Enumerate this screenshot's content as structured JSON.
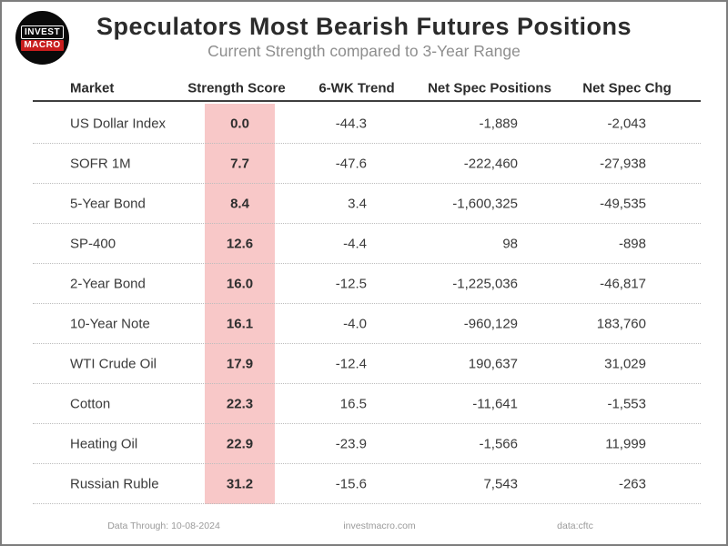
{
  "header": {
    "title": "Speculators Most Bearish Futures Positions",
    "subtitle": "Current Strength compared to 3-Year Range"
  },
  "logo": {
    "line1": "INVEST",
    "line2": "MACRO"
  },
  "table": {
    "columns": [
      "Market",
      "Strength Score",
      "6-WK Trend",
      "Net Spec Positions",
      "Net Spec Chg"
    ],
    "rows": [
      {
        "market": "US Dollar Index",
        "score": "0.0",
        "trend": "-44.3",
        "net_spec_positions": "-1,889",
        "net_spec_chg": "-2,043"
      },
      {
        "market": "SOFR 1M",
        "score": "7.7",
        "trend": "-47.6",
        "net_spec_positions": "-222,460",
        "net_spec_chg": "-27,938"
      },
      {
        "market": "5-Year Bond",
        "score": "8.4",
        "trend": "3.4",
        "net_spec_positions": "-1,600,325",
        "net_spec_chg": "-49,535"
      },
      {
        "market": "SP-400",
        "score": "12.6",
        "trend": "-4.4",
        "net_spec_positions": "98",
        "net_spec_chg": "-898"
      },
      {
        "market": "2-Year Bond",
        "score": "16.0",
        "trend": "-12.5",
        "net_spec_positions": "-1,225,036",
        "net_spec_chg": "-46,817"
      },
      {
        "market": "10-Year Note",
        "score": "16.1",
        "trend": "-4.0",
        "net_spec_positions": "-960,129",
        "net_spec_chg": "183,760"
      },
      {
        "market": "WTI Crude Oil",
        "score": "17.9",
        "trend": "-12.4",
        "net_spec_positions": "190,637",
        "net_spec_chg": "31,029"
      },
      {
        "market": "Cotton",
        "score": "22.3",
        "trend": "16.5",
        "net_spec_positions": "-11,641",
        "net_spec_chg": "-1,553"
      },
      {
        "market": "Heating Oil",
        "score": "22.9",
        "trend": "-23.9",
        "net_spec_positions": "-1,566",
        "net_spec_chg": "11,999"
      },
      {
        "market": "Russian Ruble",
        "score": "31.2",
        "trend": "-15.6",
        "net_spec_positions": "7,543",
        "net_spec_chg": "-263"
      }
    ]
  },
  "footer": {
    "data_through": "Data Through: 10-08-2024",
    "site": "investmacro.com",
    "source": "data:cftc"
  },
  "colors": {
    "highlight_pink": "#f8c8c8",
    "logo_red": "#c81d1d",
    "header_underline": "#3f3f3f",
    "row_separator": "#bdbdbd",
    "title_text": "#2b2b2b",
    "subtitle_text": "#8e8e8e"
  },
  "chart_data": {
    "type": "table",
    "title": "Speculators Most Bearish Futures Positions",
    "subtitle": "Current Strength compared to 3-Year Range",
    "columns": [
      "Market",
      "Strength Score",
      "6-WK Trend",
      "Net Spec Positions",
      "Net Spec Chg"
    ],
    "highlighted_column": "Strength Score",
    "rows": [
      [
        "US Dollar Index",
        0.0,
        -44.3,
        -1889,
        -2043
      ],
      [
        "SOFR 1M",
        7.7,
        -47.6,
        -222460,
        -27938
      ],
      [
        "5-Year Bond",
        8.4,
        3.4,
        -1600325,
        -49535
      ],
      [
        "SP-400",
        12.6,
        -4.4,
        98,
        -898
      ],
      [
        "2-Year Bond",
        16.0,
        -12.5,
        -1225036,
        -46817
      ],
      [
        "10-Year Note",
        16.1,
        -4.0,
        -960129,
        183760
      ],
      [
        "WTI Crude Oil",
        17.9,
        -12.4,
        190637,
        31029
      ],
      [
        "Cotton",
        22.3,
        16.5,
        -11641,
        -1553
      ],
      [
        "Heating Oil",
        22.9,
        -23.9,
        -1566,
        11999
      ],
      [
        "Russian Ruble",
        31.2,
        -15.6,
        7543,
        -263
      ]
    ],
    "notes": [
      "Data Through: 10-08-2024",
      "investmacro.com",
      "data:cftc"
    ]
  }
}
